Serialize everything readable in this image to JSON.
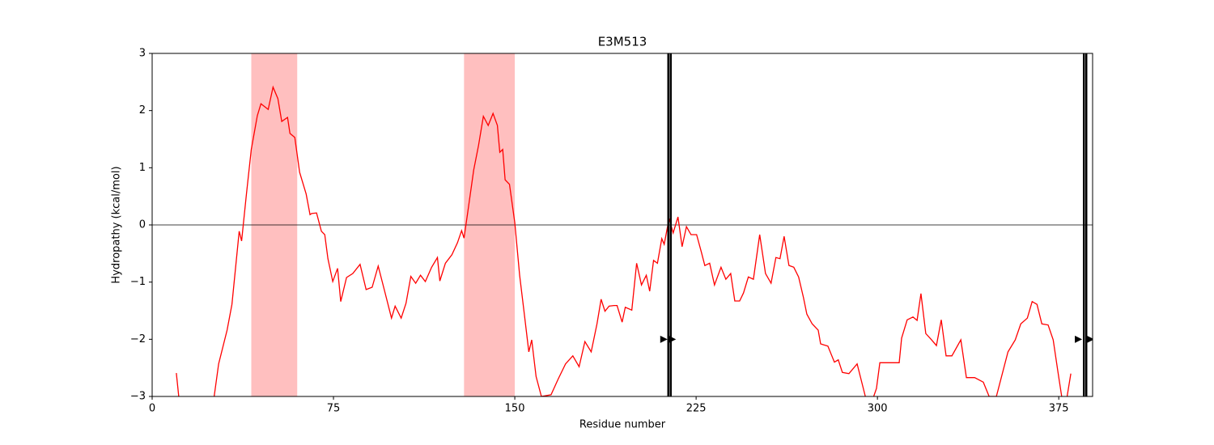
{
  "chart_data": {
    "type": "line",
    "title": "E3M513",
    "xlabel": "Residue number",
    "ylabel": "Hydropathy (kcal/mol)",
    "x": [
      10,
      11,
      15,
      20,
      25,
      27.5,
      31,
      33,
      36,
      37,
      39,
      41,
      43.5,
      45,
      48,
      50,
      52,
      53.6,
      56,
      57,
      59,
      61,
      63.7,
      65.3,
      66,
      68,
      70,
      71.4,
      72.7,
      74.7,
      76.7,
      78,
      80.4,
      83,
      86,
      88.5,
      91,
      93.5,
      96,
      99,
      100.5,
      103,
      105,
      107,
      109,
      111,
      113,
      115.6,
      118,
      119,
      121.3,
      124,
      126.3,
      128,
      129,
      130.4,
      133,
      135,
      137,
      139,
      141,
      142.8,
      143.8,
      145,
      146,
      147.8,
      150,
      152,
      154,
      155.8,
      157,
      158.8,
      161,
      165,
      168,
      171,
      174,
      176.6,
      179,
      181.6,
      184,
      185.7,
      187.3,
      189,
      191,
      192.3,
      194.4,
      195.7,
      198.4,
      200.4,
      202.4,
      204.4,
      205.8,
      207.4,
      209,
      210.8,
      211.8,
      213.8,
      215.5,
      217.5,
      219.2,
      221,
      222.9,
      225.2,
      227.2,
      228.6,
      230.6,
      232.6,
      235.3,
      237.3,
      239.3,
      241,
      243,
      244.6,
      246.6,
      248.7,
      251.3,
      253.7,
      256,
      258,
      259.7,
      261.4,
      263.4,
      265.4,
      267.4,
      269.4,
      270.8,
      273,
      275.5,
      276.5,
      279.5,
      282.2,
      283.8,
      285.5,
      288.2,
      291.6,
      295,
      297.3,
      299.6,
      301,
      305.6,
      309,
      310,
      312.3,
      314.7,
      316.4,
      318,
      320,
      322.4,
      324.4,
      326.4,
      328.4,
      330.8,
      334.5,
      336.8,
      340.2,
      343.8,
      346.2,
      349.2,
      354,
      357,
      359.3,
      362,
      364,
      366,
      368,
      370.6,
      372.7,
      374.7,
      377.3,
      380
    ],
    "series": [
      {
        "color": "#ff0000",
        "values": [
          -2.59,
          -3,
          -3.3,
          -3.3,
          -3.2,
          -2.43,
          -1.84,
          -1.39,
          -0.11,
          -0.28,
          0.54,
          1.32,
          1.91,
          2.12,
          2.02,
          2.41,
          2.21,
          1.81,
          1.88,
          1.6,
          1.53,
          0.92,
          0.54,
          0.18,
          0.2,
          0.21,
          -0.11,
          -0.17,
          -0.59,
          -0.99,
          -0.76,
          -1.34,
          -0.92,
          -0.85,
          -0.69,
          -1.13,
          -1.09,
          -0.72,
          -1.13,
          -1.63,
          -1.42,
          -1.63,
          -1.37,
          -0.9,
          -1.02,
          -0.88,
          -0.99,
          -0.74,
          -0.57,
          -0.98,
          -0.67,
          -0.52,
          -0.31,
          -0.1,
          -0.23,
          0.18,
          0.96,
          1.39,
          1.9,
          1.74,
          1.95,
          1.74,
          1.27,
          1.32,
          0.79,
          0.71,
          0.04,
          -0.88,
          -1.58,
          -2.22,
          -2.01,
          -2.65,
          -3,
          -2.97,
          -2.69,
          -2.43,
          -2.29,
          -2.48,
          -2.04,
          -2.22,
          -1.73,
          -1.3,
          -1.51,
          -1.42,
          -1.41,
          -1.41,
          -1.7,
          -1.44,
          -1.49,
          -0.67,
          -1.05,
          -0.88,
          -1.16,
          -0.62,
          -0.67,
          -0.24,
          -0.34,
          0.11,
          -0.14,
          0.14,
          -0.38,
          -0.03,
          -0.17,
          -0.17,
          -0.48,
          -0.71,
          -0.67,
          -1.05,
          -0.74,
          -0.95,
          -0.85,
          -1.33,
          -1.33,
          -1.19,
          -0.91,
          -0.95,
          -0.17,
          -0.85,
          -1.02,
          -0.57,
          -0.59,
          -0.2,
          -0.71,
          -0.74,
          -0.91,
          -1.27,
          -1.56,
          -1.73,
          -1.84,
          -2.08,
          -2.12,
          -2.4,
          -2.36,
          -2.58,
          -2.6,
          -2.43,
          -3,
          -3.14,
          -2.86,
          -2.41,
          -2.41,
          -2.41,
          -1.98,
          -1.66,
          -1.61,
          -1.67,
          -1.2,
          -1.9,
          -2.01,
          -2.11,
          -1.66,
          -2.29,
          -2.29,
          -2.01,
          -2.67,
          -2.67,
          -2.75,
          -3,
          -3,
          -2.22,
          -2.01,
          -1.73,
          -1.63,
          -1.34,
          -1.39,
          -1.73,
          -1.75,
          -2.01,
          -2.58,
          -3.3,
          -2.6
        ]
      }
    ],
    "spans": [
      [
        41,
        60
      ],
      [
        129,
        150
      ]
    ],
    "span_color": "#ffbfbf",
    "vlines": [
      213.5,
      214.5,
      385.4,
      386.4
    ],
    "markers": {
      "x": [
        211.5,
        215,
        383,
        388
      ],
      "y": [
        -2,
        -2,
        -2,
        -2
      ]
    },
    "hline": 0,
    "xlim": [
      0,
      389
    ],
    "ylim": [
      -3,
      3
    ],
    "xticks": [
      0,
      75,
      150,
      225,
      300,
      375
    ],
    "yticks": [
      {
        "value": -3,
        "label": "−3"
      },
      {
        "value": -2,
        "label": "−2"
      },
      {
        "value": -1,
        "label": "−1"
      },
      0,
      1,
      2,
      3
    ]
  }
}
